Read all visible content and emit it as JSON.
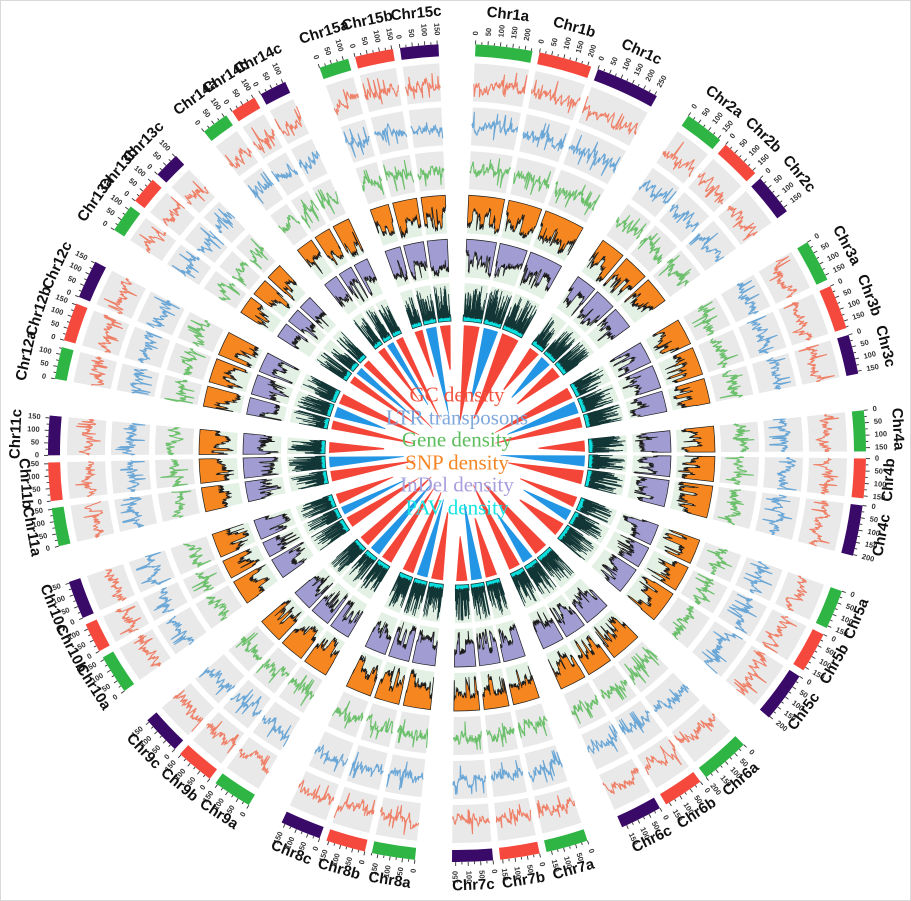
{
  "chart_data": {
    "type": "circos",
    "description": "Circular genome plot with six density tracks and inner red/blue link wedges",
    "legend": {
      "position": "center",
      "items": [
        {
          "label": "GC density",
          "color": "#f4513e"
        },
        {
          "label": "LTR transposons",
          "color": "#7fa8dc"
        },
        {
          "label": "Gene density",
          "color": "#5cbd5c"
        },
        {
          "label": "SNP density",
          "color": "#f68523"
        },
        {
          "label": "InDel density",
          "color": "#a79fdd"
        },
        {
          "label": "PAV density",
          "color": "#16e3e3"
        }
      ]
    },
    "tracks": [
      {
        "id": "gc",
        "label": "GC density",
        "style": "line",
        "color": "#ef8068",
        "bg": "#e9e9e9"
      },
      {
        "id": "ltr",
        "label": "LTR transposons",
        "style": "line",
        "color": "#6ba7d6",
        "bg": "#e9e9e9"
      },
      {
        "id": "gene",
        "label": "Gene density",
        "style": "line",
        "color": "#6cc06c",
        "bg": "#e9e9e9"
      },
      {
        "id": "snp",
        "label": "SNP density",
        "style": "area-in",
        "color": "#f6861f",
        "outline": "#1c1c1c",
        "bg": "#e3f0e4"
      },
      {
        "id": "indel",
        "label": "InDel density",
        "style": "area-in",
        "color": "#a19cd2",
        "outline": "#1c1c1c",
        "bg": "#e3f0e4"
      },
      {
        "id": "pav",
        "label": "PAV density",
        "style": "spike-out",
        "color": "#0cdede",
        "outline": "#123535",
        "bg": "#e3f0e4"
      }
    ],
    "segment_colors": {
      "a": "#2eb544",
      "b": "#f5493d",
      "c": "#3a0a68"
    },
    "link_colors": {
      "red": "#f44638",
      "blue": "#2395e5"
    },
    "link_pattern_per_group": [
      "red",
      "blue",
      "red"
    ],
    "axis": {
      "unit": "Mb",
      "major_tick": 50,
      "minor_tick": 25,
      "tick_labels": [
        0,
        50,
        100,
        150,
        200,
        250
      ]
    },
    "chromosomes": [
      {
        "group": "Chr1",
        "segments": [
          {
            "label": "Chr1a",
            "size": 230
          },
          {
            "label": "Chr1b",
            "size": 215
          },
          {
            "label": "Chr1c",
            "size": 260
          }
        ]
      },
      {
        "group": "Chr2",
        "segments": [
          {
            "label": "Chr2a",
            "size": 160
          },
          {
            "label": "Chr2b",
            "size": 165
          },
          {
            "label": "Chr2c",
            "size": 170
          }
        ]
      },
      {
        "group": "Chr3",
        "segments": [
          {
            "label": "Chr3a",
            "size": 170
          },
          {
            "label": "Chr3b",
            "size": 180
          },
          {
            "label": "Chr3c",
            "size": 160
          }
        ]
      },
      {
        "group": "Chr4",
        "segments": [
          {
            "label": "Chr4a",
            "size": 165
          },
          {
            "label": "Chr4b",
            "size": 160
          },
          {
            "label": "Chr4c",
            "size": 205
          }
        ]
      },
      {
        "group": "Chr5",
        "segments": [
          {
            "label": "Chr5a",
            "size": 160
          },
          {
            "label": "Chr5b",
            "size": 165
          },
          {
            "label": "Chr5c",
            "size": 205
          }
        ]
      },
      {
        "group": "Chr6",
        "segments": [
          {
            "label": "Chr6a",
            "size": 200
          },
          {
            "label": "Chr6b",
            "size": 165
          },
          {
            "label": "Chr6c",
            "size": 170
          }
        ]
      },
      {
        "group": "Chr7",
        "segments": [
          {
            "label": "Chr7a",
            "size": 170
          },
          {
            "label": "Chr7b",
            "size": 160
          },
          {
            "label": "Chr7c",
            "size": 165
          }
        ]
      },
      {
        "group": "Chr8",
        "segments": [
          {
            "label": "Chr8a",
            "size": 175
          },
          {
            "label": "Chr8b",
            "size": 160
          },
          {
            "label": "Chr8c",
            "size": 165
          }
        ]
      },
      {
        "group": "Chr9",
        "segments": [
          {
            "label": "Chr9a",
            "size": 160
          },
          {
            "label": "Chr9b",
            "size": 155
          },
          {
            "label": "Chr9c",
            "size": 160
          }
        ]
      },
      {
        "group": "Chr10",
        "segments": [
          {
            "label": "Chr10a",
            "size": 160
          },
          {
            "label": "Chr10b",
            "size": 120
          },
          {
            "label": "Chr10c",
            "size": 155
          }
        ]
      },
      {
        "group": "Chr11",
        "segments": [
          {
            "label": "Chr11a",
            "size": 155
          },
          {
            "label": "Chr11b",
            "size": 155
          },
          {
            "label": "Chr11c",
            "size": 160
          }
        ]
      },
      {
        "group": "Chr12",
        "segments": [
          {
            "label": "Chr12a",
            "size": 130
          },
          {
            "label": "Chr12b",
            "size": 155
          },
          {
            "label": "Chr12c",
            "size": 155
          }
        ]
      },
      {
        "group": "Chr13",
        "segments": [
          {
            "label": "Chr13a",
            "size": 115
          },
          {
            "label": "Chr13b",
            "size": 110
          },
          {
            "label": "Chr13c",
            "size": 105
          }
        ]
      },
      {
        "group": "Chr14",
        "segments": [
          {
            "label": "Chr14a",
            "size": 110
          },
          {
            "label": "Chr14b",
            "size": 105
          },
          {
            "label": "Chr14c",
            "size": 110
          }
        ]
      },
      {
        "group": "Chr15",
        "segments": [
          {
            "label": "Chr15a",
            "size": 120
          },
          {
            "label": "Chr15b",
            "size": 155
          },
          {
            "label": "Chr15c",
            "size": 155
          }
        ]
      }
    ]
  }
}
